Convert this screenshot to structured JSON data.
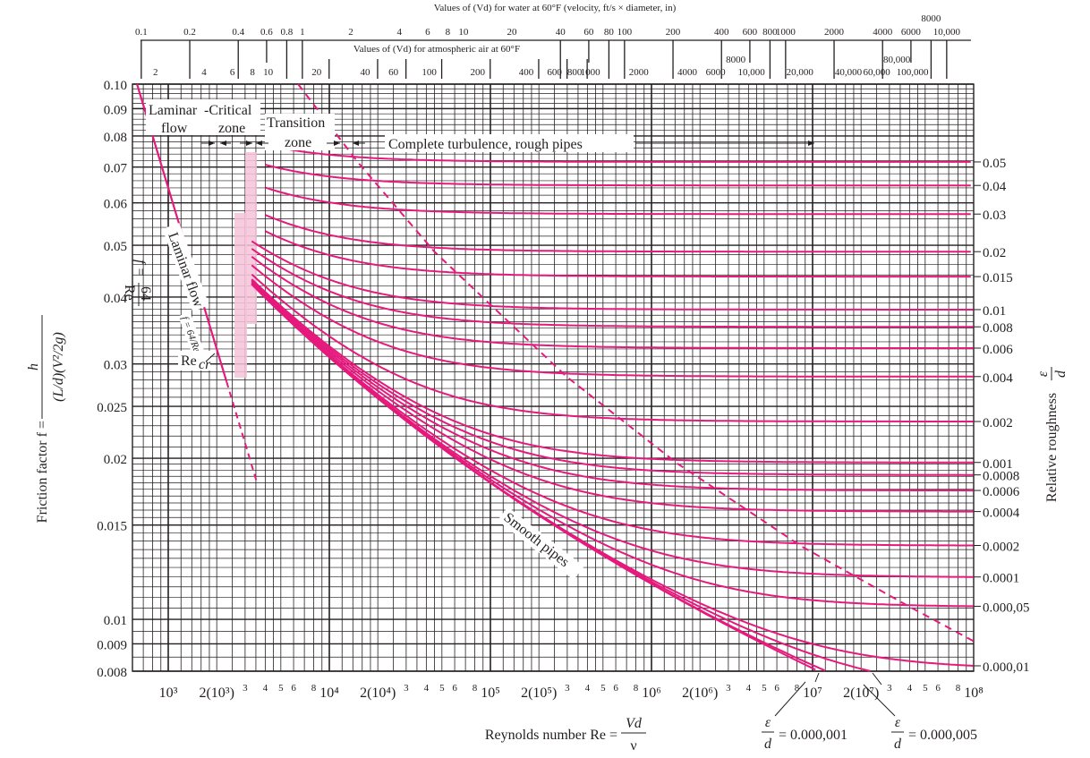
{
  "chart_data": {
    "type": "line",
    "x_scale": "log",
    "y_scale": "log",
    "xlim": [
      600,
      100000000
    ],
    "ylim": [
      0.008,
      0.1
    ],
    "grid": true,
    "curve_color": "#e6197d",
    "shade_color": "#f6c3d8",
    "xlabel": "Reynolds number Re = ",
    "xlabel_fraction": {
      "num": "Vd",
      "den": "ν"
    },
    "ylabel": "Friction factor f = ",
    "ylabel_fraction": {
      "num": "h",
      "den": "(L/d)(V²/2g)"
    },
    "right_label": "Relative roughness ",
    "right_label_fraction": {
      "num": "ε",
      "den": "d"
    },
    "top_water_title": "Values of (Vd) for water at 60°F (velocity, ft/s × diameter, in)",
    "top_air_title": "Values of (Vd) for atmospheric air at 60°F",
    "top_water_ticks": [
      "0.1",
      "0.2",
      "0.4",
      "0.6",
      "0.8",
      "1",
      "2",
      "4",
      "6",
      "8",
      "10",
      "20",
      "40",
      "60",
      "80",
      "100",
      "200",
      "400",
      "600",
      "800",
      "1000",
      "2000",
      "4000",
      "6000",
      "8000",
      "10,000"
    ],
    "top_air_ticks": [
      "2",
      "4",
      "6",
      "8",
      "10",
      "20",
      "40",
      "60",
      "100",
      "200",
      "400",
      "600",
      "800",
      "1000",
      "2000",
      "4000",
      "6000",
      "8000",
      "10,000",
      "20,000",
      "40,000",
      "60,000",
      "80,000",
      "100,000"
    ],
    "y_ticks": [
      {
        "v": 0.1,
        "t": "0.10"
      },
      {
        "v": 0.09,
        "t": "0.09"
      },
      {
        "v": 0.08,
        "t": "0.08"
      },
      {
        "v": 0.07,
        "t": "0.07"
      },
      {
        "v": 0.06,
        "t": "0.06"
      },
      {
        "v": 0.05,
        "t": "0.05"
      },
      {
        "v": 0.04,
        "t": "0.04"
      },
      {
        "v": 0.03,
        "t": "0.03"
      },
      {
        "v": 0.025,
        "t": "0.025"
      },
      {
        "v": 0.02,
        "t": "0.02"
      },
      {
        "v": 0.015,
        "t": "0.015"
      },
      {
        "v": 0.01,
        "t": "0.01"
      },
      {
        "v": 0.009,
        "t": "0.009"
      },
      {
        "v": 0.008,
        "t": "0.008"
      }
    ],
    "x_ticks": [
      {
        "v": 1000,
        "t": "10³"
      },
      {
        "v": 2000,
        "t": "2(10³)"
      },
      {
        "v": 3000,
        "t": "3"
      },
      {
        "v": 4000,
        "t": "4"
      },
      {
        "v": 5000,
        "t": "5"
      },
      {
        "v": 6000,
        "t": "6"
      },
      {
        "v": 8000,
        "t": "8"
      },
      {
        "v": 10000,
        "t": "10⁴"
      },
      {
        "v": 20000,
        "t": "2(10⁴)"
      },
      {
        "v": 30000,
        "t": "3"
      },
      {
        "v": 40000,
        "t": "4"
      },
      {
        "v": 50000,
        "t": "5"
      },
      {
        "v": 60000,
        "t": "6"
      },
      {
        "v": 80000,
        "t": "8"
      },
      {
        "v": 100000,
        "t": "10⁵"
      },
      {
        "v": 200000,
        "t": "2(10⁵)"
      },
      {
        "v": 300000,
        "t": "3"
      },
      {
        "v": 400000,
        "t": "4"
      },
      {
        "v": 500000,
        "t": "5"
      },
      {
        "v": 600000,
        "t": "6"
      },
      {
        "v": 800000,
        "t": "8"
      },
      {
        "v": 1000000,
        "t": "10⁶"
      },
      {
        "v": 2000000,
        "t": "2(10⁶)"
      },
      {
        "v": 3000000,
        "t": "3"
      },
      {
        "v": 4000000,
        "t": "4"
      },
      {
        "v": 5000000,
        "t": "5"
      },
      {
        "v": 6000000,
        "t": "6"
      },
      {
        "v": 8000000,
        "t": "8"
      },
      {
        "v": 10000000,
        "t": "10⁷"
      },
      {
        "v": 20000000,
        "t": "2(10⁷)"
      },
      {
        "v": 30000000,
        "t": "3"
      },
      {
        "v": 40000000,
        "t": "4"
      },
      {
        "v": 50000000,
        "t": "5"
      },
      {
        "v": 60000000,
        "t": "6"
      },
      {
        "v": 80000000,
        "t": "8"
      },
      {
        "v": 100000000,
        "t": "10⁸"
      }
    ],
    "laminar": {
      "equation": "f = 64/Re",
      "solid_re": [
        640,
        2300
      ],
      "dashed_re": [
        2300,
        3550
      ]
    },
    "roughness_series": [
      {
        "eps_d": 0.05,
        "label": "0.05"
      },
      {
        "eps_d": 0.04,
        "label": "0.04"
      },
      {
        "eps_d": 0.03,
        "label": "0.03"
      },
      {
        "eps_d": 0.02,
        "label": "0.02"
      },
      {
        "eps_d": 0.015,
        "label": "0.015"
      },
      {
        "eps_d": 0.01,
        "label": "0.01"
      },
      {
        "eps_d": 0.008,
        "label": "0.008"
      },
      {
        "eps_d": 0.006,
        "label": "0.006"
      },
      {
        "eps_d": 0.004,
        "label": "0.004"
      },
      {
        "eps_d": 0.002,
        "label": "0.002"
      },
      {
        "eps_d": 0.001,
        "label": "0.001"
      },
      {
        "eps_d": 0.0008,
        "label": "0.0008"
      },
      {
        "eps_d": 0.0006,
        "label": "0.0006"
      },
      {
        "eps_d": 0.0004,
        "label": "0.0004"
      },
      {
        "eps_d": 0.0002,
        "label": "0.0002"
      },
      {
        "eps_d": 0.0001,
        "label": "0.0001"
      },
      {
        "eps_d": 5e-05,
        "label": "0.000,05"
      },
      {
        "eps_d": 1e-05,
        "label": "0.000,01"
      },
      {
        "eps_d": 5e-06,
        "label": ""
      },
      {
        "eps_d": 1e-06,
        "label": ""
      },
      {
        "eps_d": 0,
        "label": ""
      }
    ],
    "rough_boundary_dashed": [
      {
        "re": 6400,
        "f": 0.1
      },
      {
        "re": 15000,
        "f": 0.0715
      },
      {
        "re": 45000,
        "f": 0.0486
      },
      {
        "re": 297000,
        "f": 0.0284
      },
      {
        "re": 1430000,
        "f": 0.0196
      },
      {
        "re": 8500000,
        "f": 0.0137
      },
      {
        "re": 39000000,
        "f": 0.0106
      },
      {
        "re": 100000000,
        "f": 0.0091
      }
    ],
    "annotations": {
      "laminar_top": "Laminar",
      "laminar_flow": "flow",
      "critical": "-Critical",
      "critical_zone": "zone",
      "transition": "Transition",
      "transition_zone": "zone",
      "complete_turbulence": "Complete turbulence, rough pipes",
      "laminar_flow_line": "Laminar flow",
      "laminar_eq_f": "f =",
      "laminar_eq_num": "64",
      "laminar_eq_den": "Re",
      "re_cr": "Re",
      "re_cr_sub": "cr",
      "smooth_pipes": "Smooth pipes",
      "eps_1": "= 0.000,001",
      "eps_5": "= 0.000,005",
      "eps_num": "ε",
      "eps_den": "d"
    }
  }
}
